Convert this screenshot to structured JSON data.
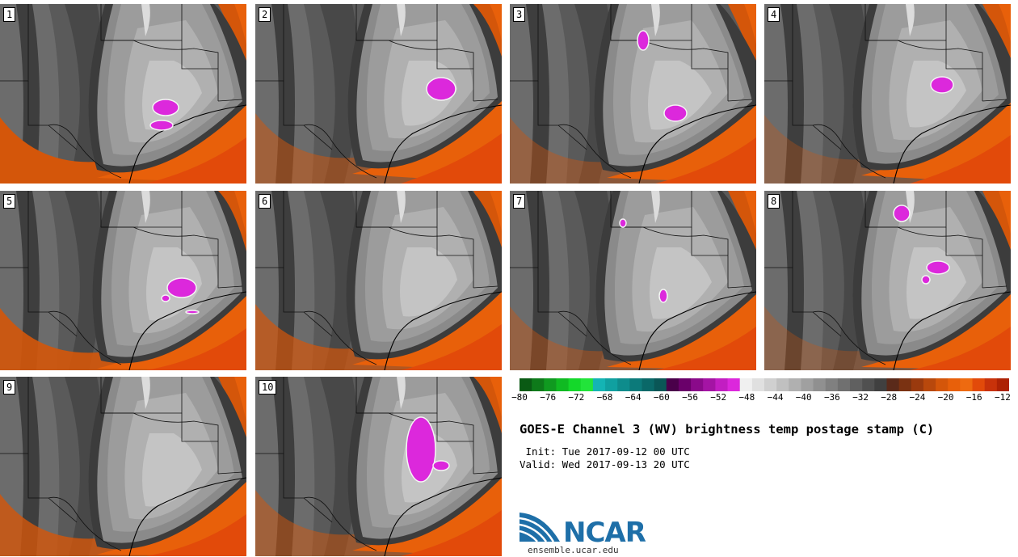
{
  "panels": [
    {
      "label": "1"
    },
    {
      "label": "2"
    },
    {
      "label": "3"
    },
    {
      "label": "4"
    },
    {
      "label": "5"
    },
    {
      "label": "6"
    },
    {
      "label": "7"
    },
    {
      "label": "8"
    },
    {
      "label": "9"
    },
    {
      "label": "10"
    }
  ],
  "colorbar": {
    "title": "GOES-E Channel 3 (WV) brightness temp postage stamp (C)",
    "ticks": [
      "-80",
      "-76",
      "-72",
      "-68",
      "-64",
      "-60",
      "-56",
      "-52",
      "-48",
      "-44",
      "-40",
      "-36",
      "-32",
      "-28",
      "-24",
      "-20",
      "-16",
      "-12"
    ],
    "colors": [
      "#0a5a14",
      "#0e7a1a",
      "#109a20",
      "#10ba22",
      "#14d82a",
      "#22e43a",
      "#14b4b4",
      "#10a0a0",
      "#0e8c8c",
      "#0c7a7a",
      "#0a6868",
      "#0a5656",
      "#4a004a",
      "#6a006a",
      "#8a0a8a",
      "#a414a4",
      "#c21ec2",
      "#dc28dc",
      "#f0f0f0",
      "#e0e0e0",
      "#d0d0d0",
      "#c0c0c0",
      "#b0b0b0",
      "#a0a0a0",
      "#909090",
      "#808080",
      "#707070",
      "#606060",
      "#505050",
      "#404040",
      "#5a2a1a",
      "#7a3212",
      "#9a3a0e",
      "#b8480c",
      "#d4560a",
      "#e8600a",
      "#ee6a10",
      "#e24a0a",
      "#c8320a",
      "#ad2204"
    ]
  },
  "meta": {
    "init": " Init: Tue 2017-09-12 00 UTC",
    "valid": "Valid: Wed 2017-09-13 20 UTC"
  },
  "logo": {
    "name": "NCAR",
    "url": "ensemble.ucar.edu"
  }
}
